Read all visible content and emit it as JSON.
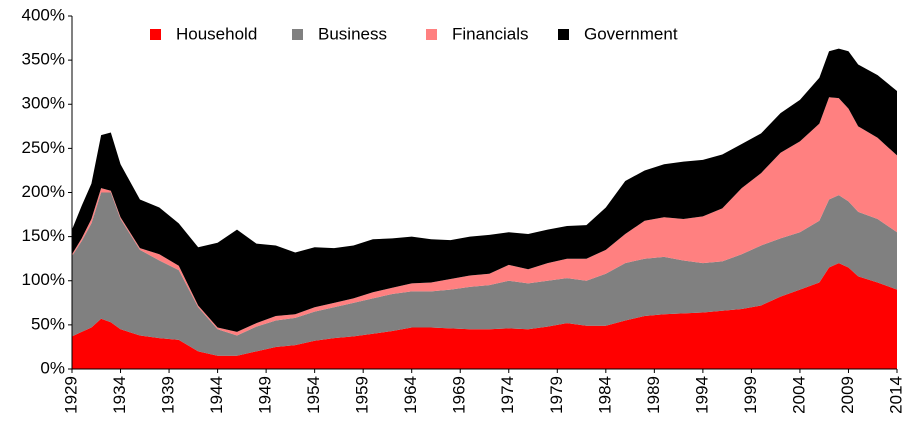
{
  "chart_data": {
    "type": "stacked_area",
    "x": [
      1929,
      1930,
      1931,
      1932,
      1933,
      1934,
      1936,
      1938,
      1940,
      1942,
      1944,
      1946,
      1948,
      1950,
      1952,
      1954,
      1956,
      1958,
      1960,
      1962,
      1964,
      1966,
      1968,
      1970,
      1972,
      1974,
      1976,
      1978,
      1980,
      1982,
      1984,
      1986,
      1988,
      1990,
      1992,
      1994,
      1996,
      1998,
      2000,
      2002,
      2004,
      2006,
      2007,
      2008,
      2009,
      2010,
      2012,
      2014
    ],
    "series": [
      {
        "name": "Household",
        "color": "#ff0000",
        "values": [
          37,
          42,
          47,
          57,
          53,
          45,
          38,
          35,
          33,
          20,
          15,
          15,
          20,
          25,
          27,
          32,
          35,
          37,
          40,
          43,
          47,
          47,
          46,
          45,
          45,
          46,
          45,
          48,
          52,
          49,
          49,
          55,
          60,
          62,
          63,
          64,
          66,
          68,
          72,
          82,
          90,
          98,
          115,
          120,
          115,
          105,
          98,
          90
        ]
      },
      {
        "name": "Business",
        "color": "#808080",
        "values": [
          91,
          103,
          118,
          143,
          147,
          125,
          97,
          88,
          79,
          50,
          30,
          23,
          28,
          30,
          31,
          33,
          35,
          38,
          40,
          42,
          41,
          41,
          44,
          48,
          50,
          54,
          52,
          52,
          51,
          51,
          59,
          65,
          65,
          65,
          60,
          56,
          56,
          62,
          68,
          66,
          65,
          70,
          77,
          77,
          75,
          73,
          72,
          65
        ]
      },
      {
        "name": "Financials",
        "color": "#ff8080",
        "values": [
          2,
          3,
          5,
          5,
          2,
          2,
          2,
          7,
          5,
          2,
          2,
          4,
          4,
          5,
          4,
          5,
          5,
          5,
          7,
          7,
          9,
          10,
          12,
          13,
          13,
          18,
          16,
          20,
          22,
          25,
          27,
          33,
          43,
          45,
          47,
          53,
          60,
          75,
          82,
          97,
          103,
          110,
          116,
          110,
          105,
          97,
          92,
          87
        ]
      },
      {
        "name": "Government",
        "color": "#000000",
        "values": [
          28,
          37,
          40,
          60,
          66,
          60,
          55,
          53,
          48,
          66,
          96,
          116,
          90,
          80,
          70,
          68,
          62,
          60,
          60,
          56,
          53,
          49,
          44,
          44,
          44,
          37,
          40,
          38,
          37,
          38,
          48,
          60,
          57,
          60,
          65,
          64,
          61,
          50,
          45,
          45,
          47,
          52,
          52,
          56,
          65,
          70,
          71,
          73
        ]
      }
    ],
    "xlim": [
      1929,
      2014
    ],
    "xticks": [
      1929,
      1934,
      1939,
      1944,
      1949,
      1954,
      1959,
      1964,
      1969,
      1974,
      1979,
      1984,
      1989,
      1994,
      1999,
      2004,
      2009,
      2014
    ],
    "ylim": [
      0,
      400
    ],
    "yticks": [
      {
        "value": 0,
        "label": "0%"
      },
      {
        "value": 50,
        "label": "50%"
      },
      {
        "value": 100,
        "label": "100%"
      },
      {
        "value": 150,
        "label": "150%"
      },
      {
        "value": 200,
        "label": "200%"
      },
      {
        "value": 250,
        "label": "250%"
      },
      {
        "value": 300,
        "label": "300%"
      },
      {
        "value": 350,
        "label": "350%"
      },
      {
        "value": 400,
        "label": "400%"
      }
    ],
    "legend": "top"
  }
}
